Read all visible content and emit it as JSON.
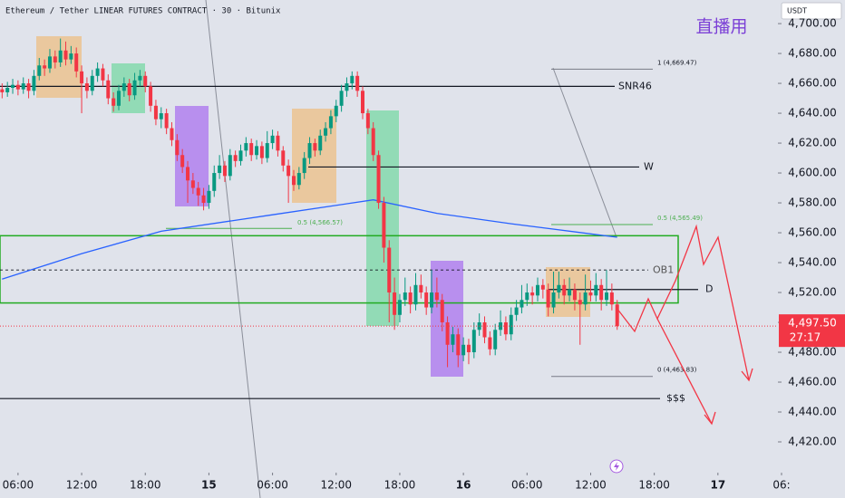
{
  "header": "Ethereum / Tether LINEAR FUTURES CONTRACT · 30 · Bitunix",
  "watermark": "直播用",
  "currency": "USDT",
  "chart_data": {
    "type": "candlestick",
    "up_color": "#089981",
    "down_color": "#f23645",
    "xlim": [
      -1.7,
      72
    ],
    "ylim": [
      4399.4,
      4715.8
    ],
    "xticks": [
      {
        "value": 0,
        "label": "06:00"
      },
      {
        "value": 6,
        "label": "12:00"
      },
      {
        "value": 12,
        "label": "18:00"
      },
      {
        "value": 18,
        "label": "15"
      },
      {
        "value": 24,
        "label": "06:00"
      },
      {
        "value": 30,
        "label": "12:00"
      },
      {
        "value": 36,
        "label": "18:00"
      },
      {
        "value": 42,
        "label": "16"
      },
      {
        "value": 48,
        "label": "06:00"
      },
      {
        "value": 54,
        "label": "12:00"
      },
      {
        "value": 60,
        "label": "18:00"
      },
      {
        "value": 66,
        "label": "17"
      },
      {
        "value": 72,
        "label": "06:"
      }
    ],
    "yticks": [
      {
        "value": 4700,
        "label": "4,700.00"
      },
      {
        "value": 4680,
        "label": "4,680.00"
      },
      {
        "value": 4660,
        "label": "4,660.00"
      },
      {
        "value": 4640,
        "label": "4,640.00"
      },
      {
        "value": 4620,
        "label": "4,620.00"
      },
      {
        "value": 4600,
        "label": "4,600.00"
      },
      {
        "value": 4580,
        "label": "4,580.00"
      },
      {
        "value": 4560,
        "label": "4,560.00"
      },
      {
        "value": 4540,
        "label": "4,540.00"
      },
      {
        "value": 4520,
        "label": "4,520.00"
      },
      {
        "value": 4500,
        "label": "4,500.00"
      },
      {
        "value": 4480,
        "label": "4,480.00"
      },
      {
        "value": 4460,
        "label": "4,460.00"
      },
      {
        "value": 4440,
        "label": "4,440.00"
      },
      {
        "value": 4420,
        "label": "4,420.00"
      }
    ],
    "x": [
      -1.5,
      -1,
      -0.5,
      0,
      0.5,
      1,
      1.5,
      2,
      2.5,
      3,
      3.5,
      4,
      4.5,
      5,
      5.5,
      6,
      6.5,
      7,
      7.5,
      8,
      8.5,
      9,
      9.5,
      10,
      10.5,
      11,
      11.5,
      12,
      12.5,
      13,
      13.5,
      14,
      14.5,
      15,
      15.5,
      16,
      16.5,
      17,
      17.5,
      18,
      18.5,
      19,
      19.5,
      20,
      20.5,
      21,
      21.5,
      22,
      22.5,
      23,
      23.5,
      24,
      24.5,
      25,
      25.5,
      26,
      26.5,
      27,
      27.5,
      28,
      28.5,
      29,
      29.5,
      30,
      30.5,
      31,
      31.5,
      32,
      32.5,
      33,
      33.5,
      34,
      34.5,
      35,
      35.5,
      36,
      36.5,
      37,
      37.5,
      38,
      38.5,
      39,
      39.5,
      40,
      40.5,
      41,
      41.5,
      42,
      42.5,
      43,
      43.5,
      44,
      44.5,
      45,
      45.5,
      46,
      46.5,
      47,
      47.5,
      48,
      48.5,
      49,
      49.5,
      50,
      50.5,
      51,
      51.5,
      52,
      52.5,
      53,
      53.5,
      54,
      54.5,
      55,
      55.5,
      56,
      56.5
    ],
    "ohlc": [
      [
        4656,
        4660,
        4650,
        4654
      ],
      [
        4654,
        4661,
        4651,
        4657
      ],
      [
        4657,
        4663,
        4653,
        4659
      ],
      [
        4659,
        4662,
        4652,
        4656
      ],
      [
        4656,
        4664,
        4653,
        4660
      ],
      [
        4660,
        4663,
        4650,
        4655
      ],
      [
        4655,
        4669,
        4652,
        4665
      ],
      [
        4665,
        4677,
        4662,
        4672
      ],
      [
        4672,
        4676,
        4665,
        4670
      ],
      [
        4670,
        4683,
        4667,
        4678
      ],
      [
        4678,
        4682,
        4670,
        4674
      ],
      [
        4674,
        4690,
        4671,
        4682
      ],
      [
        4682,
        4688,
        4672,
        4676
      ],
      [
        4676,
        4685,
        4673,
        4680
      ],
      [
        4680,
        4684,
        4664,
        4668
      ],
      [
        4668,
        4672,
        4640,
        4660
      ],
      [
        4660,
        4664,
        4650,
        4655
      ],
      [
        4655,
        4669,
        4652,
        4665
      ],
      [
        4665,
        4674,
        4661,
        4670
      ],
      [
        4670,
        4673,
        4658,
        4662
      ],
      [
        4662,
        4666,
        4646,
        4650
      ],
      [
        4650,
        4654,
        4641,
        4645
      ],
      [
        4645,
        4659,
        4642,
        4655
      ],
      [
        4655,
        4664,
        4651,
        4660
      ],
      [
        4660,
        4663,
        4648,
        4652
      ],
      [
        4652,
        4667,
        4649,
        4662
      ],
      [
        4662,
        4669,
        4658,
        4665
      ],
      [
        4665,
        4668,
        4654,
        4658
      ],
      [
        4658,
        4661,
        4641,
        4645
      ],
      [
        4645,
        4649,
        4632,
        4636
      ],
      [
        4636,
        4644,
        4630,
        4640
      ],
      [
        4640,
        4643,
        4626,
        4630
      ],
      [
        4630,
        4634,
        4618,
        4622
      ],
      [
        4622,
        4626,
        4608,
        4612
      ],
      [
        4612,
        4616,
        4600,
        4604
      ],
      [
        4604,
        4608,
        4580,
        4595
      ],
      [
        4595,
        4600,
        4586,
        4590
      ],
      [
        4590,
        4594,
        4578,
        4585
      ],
      [
        4585,
        4590,
        4575,
        4580
      ],
      [
        4580,
        4592,
        4576,
        4588
      ],
      [
        4588,
        4605,
        4584,
        4600
      ],
      [
        4600,
        4612,
        4596,
        4605
      ],
      [
        4605,
        4608,
        4594,
        4598
      ],
      [
        4598,
        4616,
        4595,
        4612
      ],
      [
        4612,
        4615,
        4604,
        4608
      ],
      [
        4608,
        4619,
        4605,
        4615
      ],
      [
        4615,
        4624,
        4611,
        4620
      ],
      [
        4620,
        4623,
        4608,
        4612
      ],
      [
        4612,
        4622,
        4609,
        4618
      ],
      [
        4618,
        4621,
        4606,
        4610
      ],
      [
        4610,
        4628,
        4607,
        4620
      ],
      [
        4620,
        4629,
        4616,
        4625
      ],
      [
        4625,
        4628,
        4611,
        4615
      ],
      [
        4615,
        4618,
        4601,
        4605
      ],
      [
        4605,
        4609,
        4580,
        4598
      ],
      [
        4598,
        4602,
        4588,
        4592
      ],
      [
        4592,
        4604,
        4589,
        4600
      ],
      [
        4600,
        4614,
        4596,
        4610
      ],
      [
        4610,
        4624,
        4606,
        4620
      ],
      [
        4620,
        4623,
        4611,
        4615
      ],
      [
        4615,
        4629,
        4612,
        4625
      ],
      [
        4625,
        4634,
        4621,
        4630
      ],
      [
        4630,
        4642,
        4626,
        4638
      ],
      [
        4638,
        4649,
        4634,
        4645
      ],
      [
        4645,
        4659,
        4641,
        4655
      ],
      [
        4655,
        4664,
        4651,
        4660
      ],
      [
        4660,
        4668,
        4656,
        4665
      ],
      [
        4665,
        4668,
        4651,
        4655
      ],
      [
        4655,
        4658,
        4636,
        4640
      ],
      [
        4640,
        4643,
        4626,
        4630
      ],
      [
        4630,
        4634,
        4608,
        4612
      ],
      [
        4612,
        4615,
        4576,
        4580
      ],
      [
        4580,
        4584,
        4540,
        4550
      ],
      [
        4550,
        4555,
        4500,
        4520
      ],
      [
        4520,
        4530,
        4495,
        4505
      ],
      [
        4505,
        4519,
        4500,
        4515
      ],
      [
        4515,
        4530,
        4511,
        4520
      ],
      [
        4520,
        4524,
        4506,
        4512
      ],
      [
        4512,
        4533,
        4508,
        4525
      ],
      [
        4525,
        4532,
        4516,
        4520
      ],
      [
        4520,
        4524,
        4505,
        4510
      ],
      [
        4510,
        4535,
        4506,
        4520
      ],
      [
        4520,
        4530,
        4510,
        4515
      ],
      [
        4515,
        4519,
        4494,
        4500
      ],
      [
        4500,
        4504,
        4470,
        4485
      ],
      [
        4485,
        4497,
        4480,
        4492
      ],
      [
        4492,
        4496,
        4470,
        4478
      ],
      [
        4478,
        4490,
        4474,
        4485
      ],
      [
        4485,
        4489,
        4472,
        4480
      ],
      [
        4480,
        4500,
        4476,
        4495
      ],
      [
        4495,
        4506,
        4491,
        4500
      ],
      [
        4500,
        4504,
        4486,
        4490
      ],
      [
        4490,
        4494,
        4478,
        4482
      ],
      [
        4482,
        4499,
        4478,
        4495
      ],
      [
        4495,
        4508,
        4491,
        4500
      ],
      [
        4500,
        4504,
        4488,
        4492
      ],
      [
        4492,
        4510,
        4488,
        4505
      ],
      [
        4505,
        4515,
        4501,
        4510
      ],
      [
        4510,
        4525,
        4506,
        4515
      ],
      [
        4515,
        4526,
        4511,
        4520
      ],
      [
        4520,
        4524,
        4512,
        4518
      ],
      [
        4518,
        4530,
        4514,
        4525
      ],
      [
        4525,
        4529,
        4516,
        4522
      ],
      [
        4522,
        4526,
        4504,
        4510
      ],
      [
        4510,
        4534,
        4506,
        4520
      ],
      [
        4520,
        4534,
        4516,
        4525
      ],
      [
        4525,
        4529,
        4512,
        4518
      ],
      [
        4518,
        4530,
        4514,
        4522
      ],
      [
        4522,
        4526,
        4508,
        4515
      ],
      [
        4515,
        4520,
        4485,
        4512
      ],
      [
        4512,
        4532,
        4508,
        4520
      ],
      [
        4520,
        4528,
        4514,
        4518
      ],
      [
        4518,
        4533,
        4514,
        4525
      ],
      [
        4525,
        4529,
        4508,
        4515
      ],
      [
        4515,
        4535,
        4511,
        4520
      ],
      [
        4520,
        4526,
        4508,
        4512
      ],
      [
        4512,
        4515,
        4495,
        4497.5
      ]
    ],
    "ma_color": "#2962ff",
    "ma_x": [
      -1.5,
      6,
      13.5,
      24,
      33.5,
      39.5,
      46.5,
      56.5
    ],
    "ma_values": [
      4529,
      4546,
      4561,
      4572,
      4582,
      4573,
      4566,
      4557
    ],
    "zone": [
      4513,
      4558
    ],
    "zone_color": "#22ab22",
    "levels": [
      {
        "label": "SNR46",
        "value": 4658
      },
      {
        "label": "W",
        "value": 4604
      },
      {
        "label": "OB1",
        "value": 4535
      },
      {
        "label": "D",
        "value": 4522
      },
      {
        "label": "$$$",
        "value": 4449
      }
    ],
    "fib": [
      {
        "label": "1 (4,669.47)",
        "value": 4669.47
      },
      {
        "label": "0.5 (4,565.49)",
        "value": 4565.49
      },
      {
        "label": "0 (4,463.83)",
        "value": 4463.83
      }
    ],
    "fib_left": {
      "label": "0.5 (4,566.57)",
      "value": 4566.57
    },
    "last_price": {
      "value": 4497.5,
      "label": "4,497.50"
    },
    "countdown": "27:17"
  }
}
